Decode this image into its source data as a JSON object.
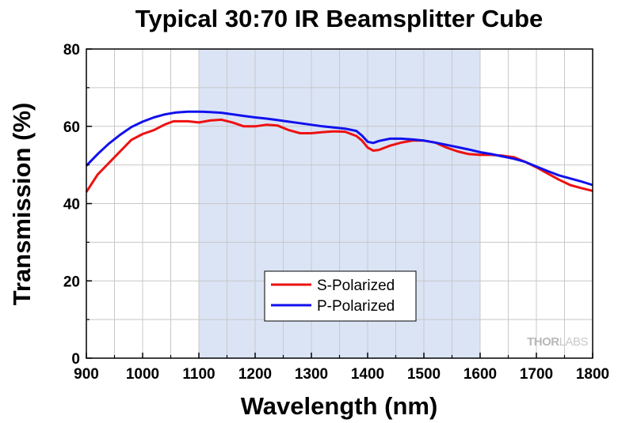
{
  "chart_data": {
    "type": "line",
    "title": "Typical 30:70 IR Beamsplitter Cube",
    "xlabel": "Wavelength (nm)",
    "ylabel": "Transmission (%)",
    "xlim": [
      900,
      1800
    ],
    "ylim": [
      0,
      80
    ],
    "x_ticks": [
      "900",
      "1000",
      "1100",
      "1200",
      "1300",
      "1400",
      "1500",
      "1600",
      "1700",
      "1800"
    ],
    "y_ticks": [
      "0",
      "20",
      "40",
      "60",
      "80"
    ],
    "grid": true,
    "shaded_region": [
      1100,
      1600
    ],
    "shaded_color": "#dbe4f5",
    "legend_position": "bottom-center",
    "watermark": {
      "brand_dark": "THOR",
      "brand_light": "LABS"
    },
    "series": [
      {
        "name": "S-Polarized",
        "color": "#ee1111",
        "x": [
          900,
          920,
          940,
          960,
          980,
          1000,
          1020,
          1040,
          1055,
          1080,
          1100,
          1120,
          1140,
          1160,
          1180,
          1200,
          1220,
          1240,
          1260,
          1280,
          1300,
          1320,
          1340,
          1360,
          1380,
          1390,
          1400,
          1410,
          1420,
          1440,
          1460,
          1480,
          1500,
          1520,
          1540,
          1560,
          1580,
          1600,
          1620,
          1640,
          1660,
          1680,
          1700,
          1720,
          1740,
          1760,
          1780,
          1800
        ],
        "y": [
          43.0,
          47.5,
          50.5,
          53.5,
          56.5,
          58.0,
          59.0,
          60.5,
          61.3,
          61.3,
          61.0,
          61.5,
          61.7,
          61.0,
          60.0,
          60.0,
          60.4,
          60.2,
          59.0,
          58.2,
          58.2,
          58.5,
          58.7,
          58.6,
          57.5,
          56.3,
          54.5,
          53.7,
          53.9,
          55.0,
          55.8,
          56.3,
          56.3,
          55.8,
          54.5,
          53.5,
          52.8,
          52.6,
          52.6,
          52.4,
          52.0,
          50.8,
          49.4,
          47.8,
          46.2,
          44.8,
          44.0,
          43.3
        ]
      },
      {
        "name": "P-Polarized",
        "color": "#1111ee",
        "x": [
          900,
          920,
          940,
          960,
          980,
          1000,
          1020,
          1040,
          1060,
          1080,
          1100,
          1120,
          1140,
          1160,
          1180,
          1200,
          1220,
          1240,
          1260,
          1280,
          1300,
          1320,
          1340,
          1360,
          1380,
          1390,
          1400,
          1410,
          1420,
          1440,
          1460,
          1480,
          1500,
          1520,
          1540,
          1560,
          1580,
          1600,
          1620,
          1640,
          1660,
          1680,
          1700,
          1720,
          1740,
          1760,
          1780,
          1800
        ],
        "y": [
          49.8,
          52.8,
          55.5,
          57.8,
          59.8,
          61.2,
          62.3,
          63.1,
          63.6,
          63.8,
          63.8,
          63.7,
          63.5,
          63.1,
          62.7,
          62.3,
          62.0,
          61.6,
          61.2,
          60.8,
          60.4,
          60.0,
          59.7,
          59.4,
          58.8,
          57.6,
          56.0,
          55.7,
          56.2,
          56.8,
          56.8,
          56.6,
          56.3,
          55.8,
          55.2,
          54.6,
          54.0,
          53.3,
          52.8,
          52.2,
          51.6,
          50.8,
          49.6,
          48.4,
          47.3,
          46.5,
          45.7,
          44.8
        ]
      }
    ]
  }
}
